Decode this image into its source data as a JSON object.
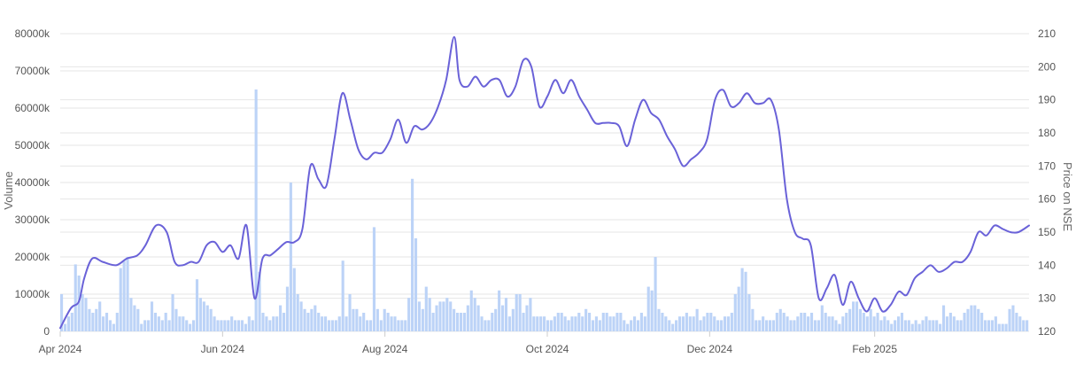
{
  "chart_data": {
    "type": "line",
    "title": "",
    "x_axis": {
      "ticks": [
        "Apr 2024",
        "Jun 2024",
        "Aug 2024",
        "Oct 2024",
        "Dec 2024",
        "Feb 2025"
      ],
      "range": [
        "2024-04-01",
        "2025-03-31"
      ]
    },
    "y_left": {
      "label": "Volume",
      "ticks": [
        "0",
        "10000k",
        "20000k",
        "30000k",
        "40000k",
        "50000k",
        "60000k",
        "70000k",
        "80000k"
      ],
      "range": [
        0,
        80000
      ]
    },
    "y_right": {
      "label": "Price on NSE",
      "ticks": [
        "120",
        "130",
        "140",
        "150",
        "160",
        "170",
        "180",
        "190",
        "200",
        "210"
      ],
      "range": [
        120,
        210
      ]
    },
    "grid": true,
    "colors": {
      "price": "#6a62d8",
      "volume": "#bcd3f7"
    },
    "series": [
      {
        "type": "line",
        "axis": "right",
        "x": [
          "2024-04-01",
          "2024-04-05",
          "2024-04-08",
          "2024-04-10",
          "2024-04-13",
          "2024-04-17",
          "2024-04-22",
          "2024-04-26",
          "2024-04-30",
          "2024-05-03",
          "2024-05-07",
          "2024-05-11",
          "2024-05-14",
          "2024-05-17",
          "2024-05-20",
          "2024-05-23",
          "2024-05-26",
          "2024-05-29",
          "2024-06-01",
          "2024-06-04",
          "2024-06-07",
          "2024-06-10",
          "2024-06-13",
          "2024-06-16",
          "2024-06-19",
          "2024-06-22",
          "2024-06-25",
          "2024-06-28",
          "2024-07-01",
          "2024-07-04",
          "2024-07-07",
          "2024-07-10",
          "2024-07-13",
          "2024-07-16",
          "2024-07-19",
          "2024-07-22",
          "2024-07-25",
          "2024-07-28",
          "2024-07-31",
          "2024-08-03",
          "2024-08-06",
          "2024-08-09",
          "2024-08-12",
          "2024-08-15",
          "2024-08-18",
          "2024-08-21",
          "2024-08-24",
          "2024-08-27",
          "2024-08-29",
          "2024-09-01",
          "2024-09-04",
          "2024-09-07",
          "2024-09-10",
          "2024-09-13",
          "2024-09-16",
          "2024-09-19",
          "2024-09-22",
          "2024-09-25",
          "2024-09-28",
          "2024-10-01",
          "2024-10-04",
          "2024-10-07",
          "2024-10-10",
          "2024-10-13",
          "2024-10-16",
          "2024-10-19",
          "2024-10-22",
          "2024-10-25",
          "2024-10-28",
          "2024-10-31",
          "2024-11-03",
          "2024-11-06",
          "2024-11-09",
          "2024-11-12",
          "2024-11-15",
          "2024-11-18",
          "2024-11-21",
          "2024-11-24",
          "2024-11-27",
          "2024-11-30",
          "2024-12-03",
          "2024-12-06",
          "2024-12-09",
          "2024-12-12",
          "2024-12-15",
          "2024-12-18",
          "2024-12-21",
          "2024-12-24",
          "2024-12-27",
          "2024-12-30",
          "2025-01-02",
          "2025-01-05",
          "2025-01-08",
          "2025-01-11",
          "2025-01-14",
          "2025-01-17",
          "2025-01-20",
          "2025-01-23",
          "2025-01-26",
          "2025-01-29",
          "2025-02-01",
          "2025-02-04",
          "2025-02-07",
          "2025-02-10",
          "2025-02-13",
          "2025-02-16",
          "2025-02-19",
          "2025-02-22",
          "2025-02-25",
          "2025-02-28",
          "2025-03-03",
          "2025-03-06",
          "2025-03-09",
          "2025-03-12",
          "2025-03-15",
          "2025-03-18",
          "2025-03-21",
          "2025-03-24",
          "2025-03-27",
          "2025-03-31"
        ],
        "values": [
          121,
          127,
          129,
          136,
          142,
          141,
          140,
          142,
          143,
          146,
          152,
          150,
          141,
          140,
          141,
          141,
          146,
          147,
          144,
          146,
          142,
          152,
          130,
          142,
          143,
          145,
          147,
          147,
          151,
          170,
          166,
          164,
          178,
          192,
          184,
          175,
          172,
          174,
          174,
          178,
          184,
          177,
          182,
          181,
          183,
          188,
          196,
          209,
          196,
          194,
          197,
          194,
          196,
          196,
          191,
          194,
          202,
          200,
          188,
          191,
          196,
          192,
          196,
          191,
          187,
          183,
          183,
          183,
          182,
          176,
          184,
          190,
          186,
          184,
          179,
          175,
          170,
          172,
          174,
          178,
          190,
          193,
          188,
          189,
          192,
          189,
          189,
          190,
          181,
          160,
          150,
          148,
          146,
          130,
          133,
          137,
          128,
          135,
          130,
          126,
          130,
          126,
          128,
          132,
          131,
          136,
          138,
          140,
          138,
          139,
          141,
          141,
          144,
          150,
          149,
          152,
          151,
          150,
          150,
          152
        ]
      },
      {
        "type": "bar",
        "axis": "left",
        "x_start": "2024-04-01",
        "x_end": "2025-03-31",
        "values": [
          10000,
          2000,
          4000,
          5000,
          18000,
          15000,
          10000,
          9000,
          6000,
          5000,
          6000,
          8000,
          4000,
          5000,
          3000,
          2000,
          5000,
          17000,
          19000,
          20000,
          9000,
          7000,
          6000,
          2000,
          3000,
          3000,
          8000,
          5000,
          4000,
          3000,
          5000,
          3000,
          10000,
          6000,
          4000,
          4000,
          3000,
          2000,
          3000,
          14000,
          9000,
          8000,
          7000,
          6000,
          4000,
          3000,
          3000,
          3000,
          3000,
          4000,
          3000,
          3000,
          3000,
          2000,
          4000,
          3000,
          65000,
          16000,
          5000,
          4000,
          3000,
          4000,
          4000,
          7000,
          5000,
          12000,
          40000,
          17000,
          10000,
          8000,
          6000,
          5000,
          6000,
          7000,
          5000,
          4000,
          4000,
          3000,
          3000,
          3000,
          4000,
          19000,
          4000,
          10000,
          6000,
          6000,
          4000,
          5000,
          3000,
          3000,
          28000,
          6000,
          3000,
          6000,
          5000,
          4000,
          4000,
          3000,
          3000,
          3000,
          9000,
          41000,
          25000,
          8000,
          6000,
          12000,
          9000,
          5000,
          7000,
          8000,
          8000,
          9000,
          8000,
          6000,
          5000,
          5000,
          5000,
          7000,
          11000,
          9000,
          7000,
          4000,
          3000,
          3000,
          5000,
          6000,
          11000,
          7000,
          9000,
          4000,
          6000,
          10000,
          10000,
          5000,
          7000,
          9000,
          4000,
          4000,
          4000,
          4000,
          3000,
          3000,
          4000,
          5000,
          5000,
          4000,
          3000,
          4000,
          4000,
          5000,
          4000,
          6000,
          5000,
          3000,
          4000,
          3000,
          5000,
          5000,
          4000,
          4000,
          5000,
          5000,
          3000,
          2000,
          3000,
          4000,
          3000,
          5000,
          4000,
          12000,
          11000,
          20000,
          6000,
          5000,
          4000,
          3000,
          2000,
          3000,
          4000,
          4000,
          5000,
          4000,
          4000,
          6000,
          3000,
          4000,
          5000,
          5000,
          4000,
          3000,
          3000,
          4000,
          4000,
          5000,
          10000,
          12000,
          17000,
          16000,
          10000,
          6000,
          3000,
          3000,
          4000,
          3000,
          3000,
          3000,
          5000,
          6000,
          5000,
          4000,
          3000,
          3000,
          4000,
          5000,
          5000,
          4000,
          5000,
          3000,
          3000,
          7000,
          5000,
          4000,
          4000,
          3000,
          2000,
          4000,
          5000,
          6000,
          8000,
          8000,
          6000,
          5000,
          4000,
          6000,
          4000,
          5000,
          3000,
          4000,
          3000,
          2000,
          3000,
          4000,
          5000,
          3000,
          3000,
          2000,
          3000,
          2000,
          3000,
          4000,
          3000,
          3000,
          3000,
          2000,
          7000,
          4000,
          5000,
          4000,
          3000,
          3000,
          5000,
          6000,
          7000,
          7000,
          6000,
          5000,
          3000,
          3000,
          3000,
          4000,
          2000,
          2000,
          2000,
          6000,
          7000,
          5000,
          4000,
          3000,
          3000
        ]
      }
    ]
  }
}
